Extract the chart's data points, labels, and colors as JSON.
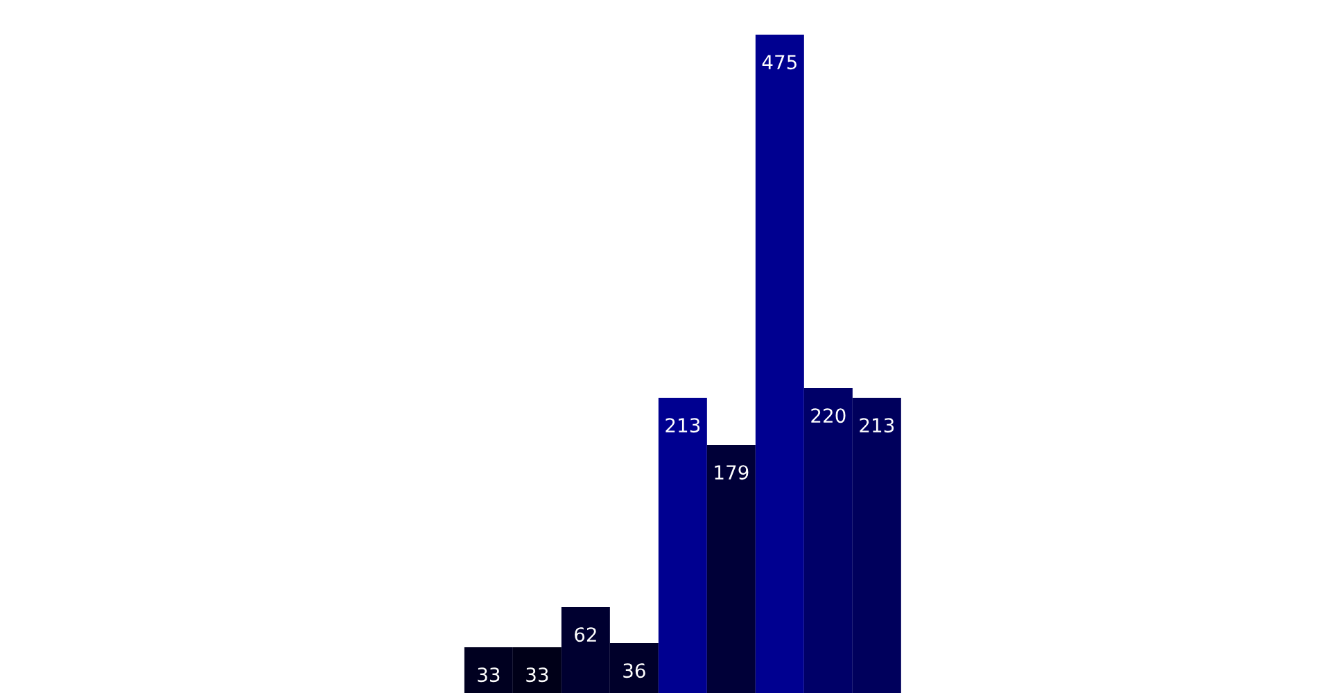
{
  "chart_data": {
    "type": "bar",
    "categories": [
      null,
      null,
      null,
      null,
      null,
      null,
      null,
      null,
      null
    ],
    "values": [
      33,
      33,
      62,
      36,
      213,
      179,
      475,
      220,
      213
    ],
    "colors": [
      "#000020",
      "#000018",
      "#000030",
      "#00002a",
      "#000090",
      "#000038",
      "#000090",
      "#000068",
      "#00005c"
    ],
    "ylim": [
      0,
      500
    ],
    "data_labels": true,
    "grid": false,
    "legend": false
  }
}
